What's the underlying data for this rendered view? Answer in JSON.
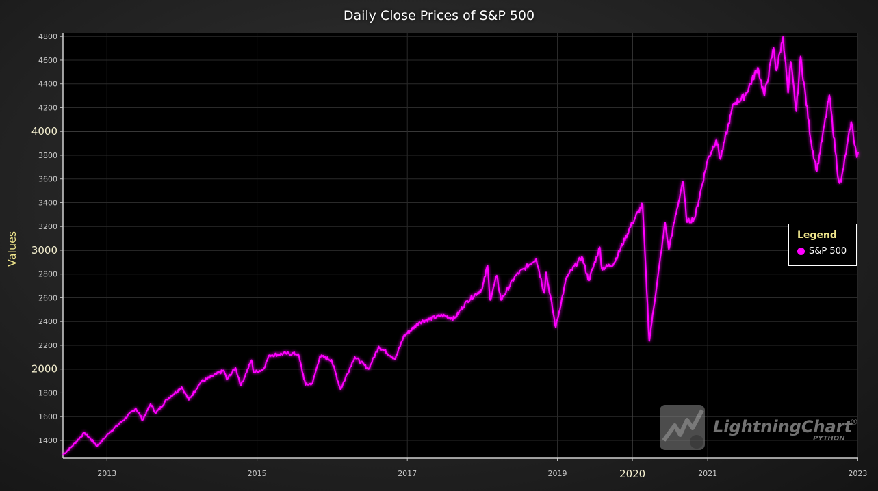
{
  "title": "Daily Close Prices of S&P 500",
  "watermark": {
    "brand": "LightningChart",
    "sub": "PYTHON",
    "reg": "®"
  },
  "chart_data": {
    "type": "line",
    "title": "Daily Close Prices of S&P 500",
    "xlabel": "",
    "ylabel": "Values",
    "ylim": [
      1250,
      4830
    ],
    "xlim": [
      "2012-06-01",
      "2023-01-03"
    ],
    "grid": true,
    "legend_placement": "right",
    "legend_title": "Legend",
    "y_ticks": [
      1400,
      1600,
      1800,
      2000,
      2200,
      2400,
      2600,
      2800,
      3000,
      3200,
      3400,
      3600,
      3800,
      4000,
      4200,
      4400,
      4600,
      4800
    ],
    "y_major_ticks": [
      2000,
      3000,
      4000
    ],
    "x_ticks": [
      "2013",
      "2015",
      "2017",
      "2019",
      "2020",
      "2021",
      "2023"
    ],
    "x_major_ticks": [
      "2020"
    ],
    "series": [
      {
        "name": "S&P 500",
        "color": "#ff00ff",
        "points": [
          [
            "2012-06-01",
            1278
          ],
          [
            "2012-07-15",
            1350
          ],
          [
            "2012-09-14",
            1465
          ],
          [
            "2012-11-15",
            1353
          ],
          [
            "2013-01-15",
            1470
          ],
          [
            "2013-03-15",
            1560
          ],
          [
            "2013-05-21",
            1670
          ],
          [
            "2013-06-24",
            1573
          ],
          [
            "2013-08-01",
            1706
          ],
          [
            "2013-08-27",
            1630
          ],
          [
            "2013-10-20",
            1745
          ],
          [
            "2013-12-31",
            1848
          ],
          [
            "2014-02-03",
            1741
          ],
          [
            "2014-04-02",
            1890
          ],
          [
            "2014-07-24",
            1988
          ],
          [
            "2014-08-07",
            1910
          ],
          [
            "2014-09-18",
            2011
          ],
          [
            "2014-10-15",
            1862
          ],
          [
            "2014-12-05",
            2075
          ],
          [
            "2014-12-16",
            1972
          ],
          [
            "2015-01-30",
            1995
          ],
          [
            "2015-03-02",
            2117
          ],
          [
            "2015-05-21",
            2131
          ],
          [
            "2015-07-20",
            2128
          ],
          [
            "2015-08-25",
            1867
          ],
          [
            "2015-09-28",
            1881
          ],
          [
            "2015-11-03",
            2109
          ],
          [
            "2015-12-29",
            2078
          ],
          [
            "2016-02-11",
            1829
          ],
          [
            "2016-04-20",
            2102
          ],
          [
            "2016-06-27",
            2000
          ],
          [
            "2016-08-15",
            2190
          ],
          [
            "2016-11-04",
            2085
          ],
          [
            "2016-12-13",
            2271
          ],
          [
            "2017-03-01",
            2395
          ],
          [
            "2017-06-19",
            2453
          ],
          [
            "2017-08-18",
            2425
          ],
          [
            "2017-10-20",
            2575
          ],
          [
            "2017-12-31",
            2673
          ],
          [
            "2018-01-26",
            2872
          ],
          [
            "2018-02-08",
            2581
          ],
          [
            "2018-03-12",
            2786
          ],
          [
            "2018-04-02",
            2581
          ],
          [
            "2018-06-12",
            2786
          ],
          [
            "2018-07-25",
            2846
          ],
          [
            "2018-09-20",
            2930
          ],
          [
            "2018-10-29",
            2641
          ],
          [
            "2018-11-07",
            2813
          ],
          [
            "2018-12-24",
            2351
          ],
          [
            "2019-02-15",
            2775
          ],
          [
            "2019-04-30",
            2945
          ],
          [
            "2019-06-03",
            2744
          ],
          [
            "2019-07-26",
            3025
          ],
          [
            "2019-08-05",
            2844
          ],
          [
            "2019-10-02",
            2887
          ],
          [
            "2019-12-31",
            3230
          ],
          [
            "2020-02-19",
            3386
          ],
          [
            "2020-03-23",
            2237
          ],
          [
            "2020-06-08",
            3232
          ],
          [
            "2020-06-26",
            3009
          ],
          [
            "2020-09-02",
            3580
          ],
          [
            "2020-09-23",
            3237
          ],
          [
            "2020-10-30",
            3270
          ],
          [
            "2020-12-31",
            3756
          ],
          [
            "2021-02-12",
            3934
          ],
          [
            "2021-03-04",
            3768
          ],
          [
            "2021-05-07",
            4232
          ],
          [
            "2021-06-30",
            4297
          ],
          [
            "2021-09-02",
            4537
          ],
          [
            "2021-10-04",
            4300
          ],
          [
            "2021-11-18",
            4704
          ],
          [
            "2021-12-01",
            4513
          ],
          [
            "2022-01-03",
            4796
          ],
          [
            "2022-01-27",
            4326
          ],
          [
            "2022-02-09",
            4587
          ],
          [
            "2022-03-08",
            4170
          ],
          [
            "2022-03-29",
            4631
          ],
          [
            "2022-05-20",
            3901
          ],
          [
            "2022-06-16",
            3667
          ],
          [
            "2022-08-16",
            4305
          ],
          [
            "2022-09-30",
            3585
          ],
          [
            "2022-10-12",
            3577
          ],
          [
            "2022-11-30",
            4080
          ],
          [
            "2022-12-28",
            3783
          ],
          [
            "2023-01-03",
            3824
          ]
        ]
      }
    ]
  }
}
